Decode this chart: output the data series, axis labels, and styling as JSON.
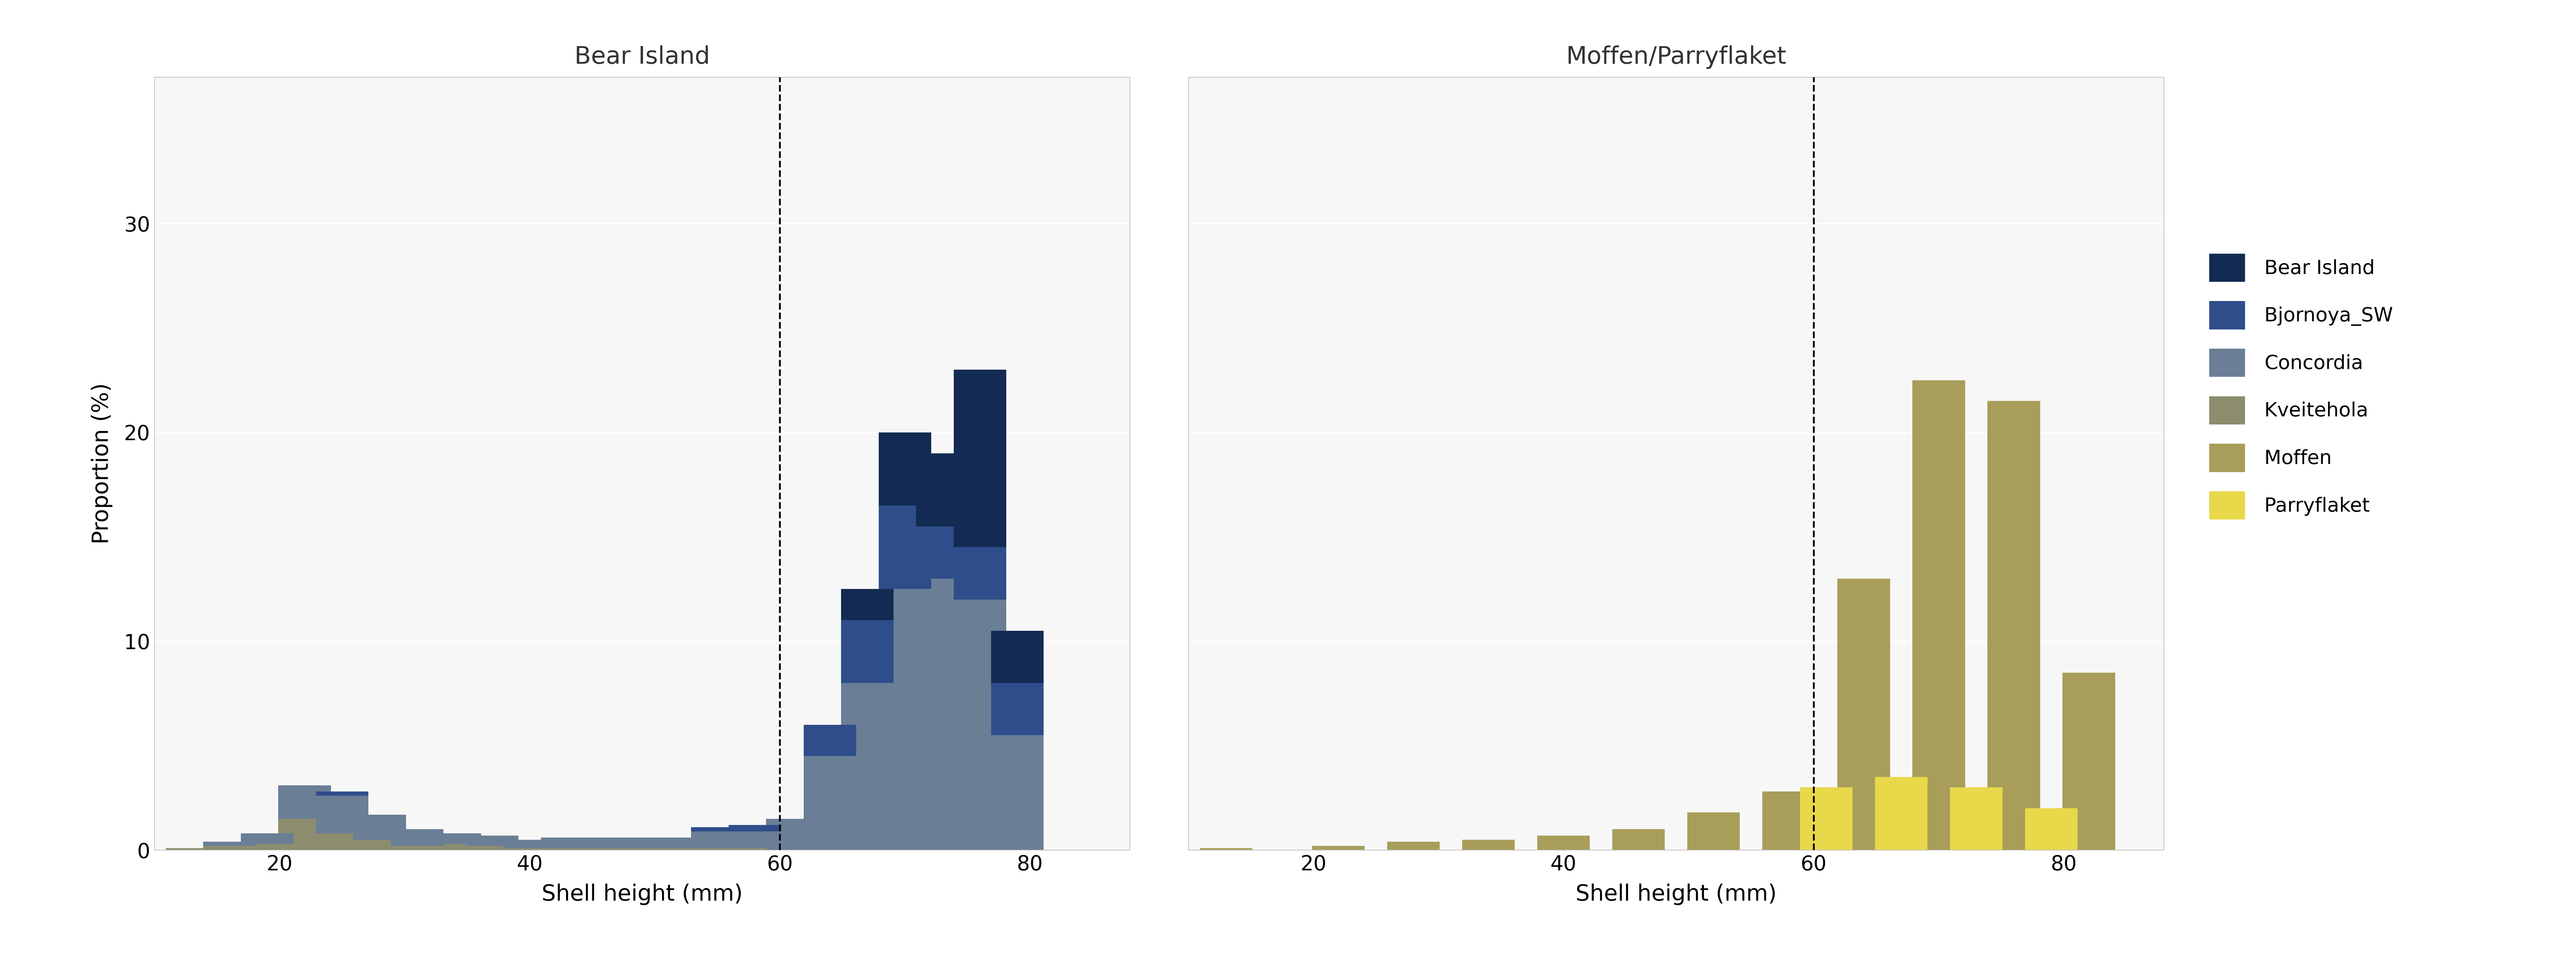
{
  "title_left": "Bear Island",
  "title_right": "Moffen/Parryflaket",
  "xlabel": "Shell height (mm)",
  "ylabel": "Proportion (%)",
  "dashed_line_x": 60,
  "ylim": [
    0,
    37
  ],
  "yticks": [
    0,
    10,
    20,
    30
  ],
  "xlim_left": [
    10,
    88
  ],
  "xlim_right": [
    10,
    88
  ],
  "xticks": [
    20,
    40,
    60,
    80
  ],
  "bar_width": 4.2,
  "background_color": "#ffffff",
  "panel_bg": "#f7f7f7",
  "grid_color": "#ffffff",
  "legend_labels": [
    "Bear Island",
    "Bjornoya_SW",
    "Concordia",
    "Kveitehola",
    "Moffen",
    "Parryflaket"
  ],
  "legend_colors": [
    "#132B52",
    "#2E4D8A",
    "#6A7E96",
    "#8C8C6E",
    "#A89E5A",
    "#E8D84A"
  ],
  "left_chart": {
    "bins": [
      13,
      16,
      19,
      22,
      25,
      28,
      31,
      34,
      37,
      40,
      43,
      46,
      49,
      52,
      55,
      58,
      61,
      64,
      67,
      70,
      73,
      76,
      79,
      82
    ],
    "Kveitehola": [
      0.1,
      0.2,
      0.3,
      1.5,
      0.8,
      0.5,
      0.2,
      0.3,
      0.2,
      0.1,
      0.1,
      0.1,
      0.1,
      0.1,
      0.1,
      0.1,
      0.0,
      0.0,
      0.0,
      0.0,
      0.0,
      0.0,
      0.0,
      0.0
    ],
    "Concordia": [
      0.0,
      0.2,
      0.5,
      1.6,
      1.8,
      1.2,
      0.8,
      0.5,
      0.5,
      0.4,
      0.5,
      0.5,
      0.5,
      0.5,
      0.8,
      0.8,
      1.5,
      4.5,
      8.0,
      12.5,
      13.0,
      12.0,
      5.5,
      0.0
    ],
    "Bjornoya_SW": [
      0.0,
      0.0,
      0.0,
      0.0,
      0.2,
      0.0,
      0.0,
      0.0,
      0.0,
      0.0,
      0.0,
      0.0,
      0.0,
      0.0,
      0.2,
      0.3,
      0.0,
      1.5,
      3.0,
      4.0,
      2.5,
      2.5,
      2.5,
      0.0
    ],
    "Bear Island": [
      0.0,
      0.0,
      0.0,
      0.0,
      0.0,
      0.0,
      0.0,
      0.0,
      0.0,
      0.0,
      0.0,
      0.0,
      0.0,
      0.0,
      0.0,
      0.0,
      0.0,
      0.0,
      1.5,
      3.5,
      3.5,
      8.5,
      2.5,
      0.0
    ],
    "Moffen": [
      0.0,
      0.0,
      0.0,
      0.0,
      0.0,
      0.0,
      0.0,
      0.0,
      0.0,
      0.0,
      0.0,
      0.0,
      0.0,
      0.0,
      0.0,
      0.0,
      0.0,
      0.0,
      0.0,
      0.0,
      0.0,
      0.0,
      0.0,
      0.0
    ],
    "Parryflaket": [
      0.0,
      0.0,
      0.0,
      0.0,
      0.0,
      0.0,
      0.0,
      0.0,
      0.0,
      0.0,
      0.0,
      0.0,
      0.0,
      0.0,
      0.0,
      0.0,
      0.0,
      0.0,
      0.0,
      0.0,
      0.0,
      0.0,
      0.0,
      0.0
    ]
  },
  "right_chart": {
    "bins": [
      13,
      16,
      19,
      22,
      25,
      28,
      31,
      34,
      37,
      40,
      43,
      46,
      49,
      52,
      55,
      58,
      61,
      64,
      67,
      70,
      73,
      76,
      79,
      82
    ],
    "Kveitehola": [
      0.0,
      0.0,
      0.0,
      0.0,
      0.0,
      0.0,
      0.0,
      0.0,
      0.0,
      0.0,
      0.0,
      0.0,
      0.0,
      0.0,
      0.0,
      0.0,
      0.0,
      0.0,
      0.0,
      0.0,
      0.0,
      0.0,
      0.0,
      0.0
    ],
    "Concordia": [
      0.0,
      0.0,
      0.0,
      0.0,
      0.0,
      0.0,
      0.0,
      0.0,
      0.0,
      0.0,
      0.0,
      0.0,
      0.0,
      0.0,
      0.0,
      0.0,
      0.0,
      0.0,
      0.0,
      0.0,
      0.0,
      0.0,
      0.0,
      0.0
    ],
    "Bjornoya_SW": [
      0.0,
      0.0,
      0.0,
      0.0,
      0.0,
      0.0,
      0.0,
      0.0,
      0.0,
      0.0,
      0.0,
      0.0,
      0.0,
      0.0,
      0.0,
      0.0,
      0.0,
      0.0,
      0.0,
      0.0,
      0.0,
      0.0,
      0.0,
      0.0
    ],
    "Bear Island": [
      0.0,
      0.0,
      0.0,
      0.0,
      0.0,
      0.0,
      0.0,
      0.0,
      0.0,
      0.0,
      0.0,
      0.0,
      0.0,
      0.0,
      0.0,
      0.0,
      0.0,
      0.0,
      0.0,
      0.0,
      0.0,
      0.0,
      0.0,
      0.0
    ],
    "Moffen": [
      0.1,
      0.0,
      0.0,
      0.2,
      0.0,
      0.4,
      0.0,
      0.5,
      0.0,
      0.7,
      0.0,
      1.0,
      0.0,
      1.8,
      0.0,
      2.8,
      0.0,
      13.0,
      0.0,
      22.5,
      0.0,
      21.5,
      0.0,
      8.5
    ],
    "Parryflaket": [
      0.0,
      0.0,
      0.0,
      0.0,
      0.0,
      0.0,
      0.0,
      0.0,
      0.0,
      0.0,
      0.0,
      0.0,
      0.0,
      0.0,
      0.0,
      0.0,
      3.0,
      0.0,
      3.5,
      0.0,
      3.0,
      0.0,
      2.0,
      0.0
    ]
  }
}
